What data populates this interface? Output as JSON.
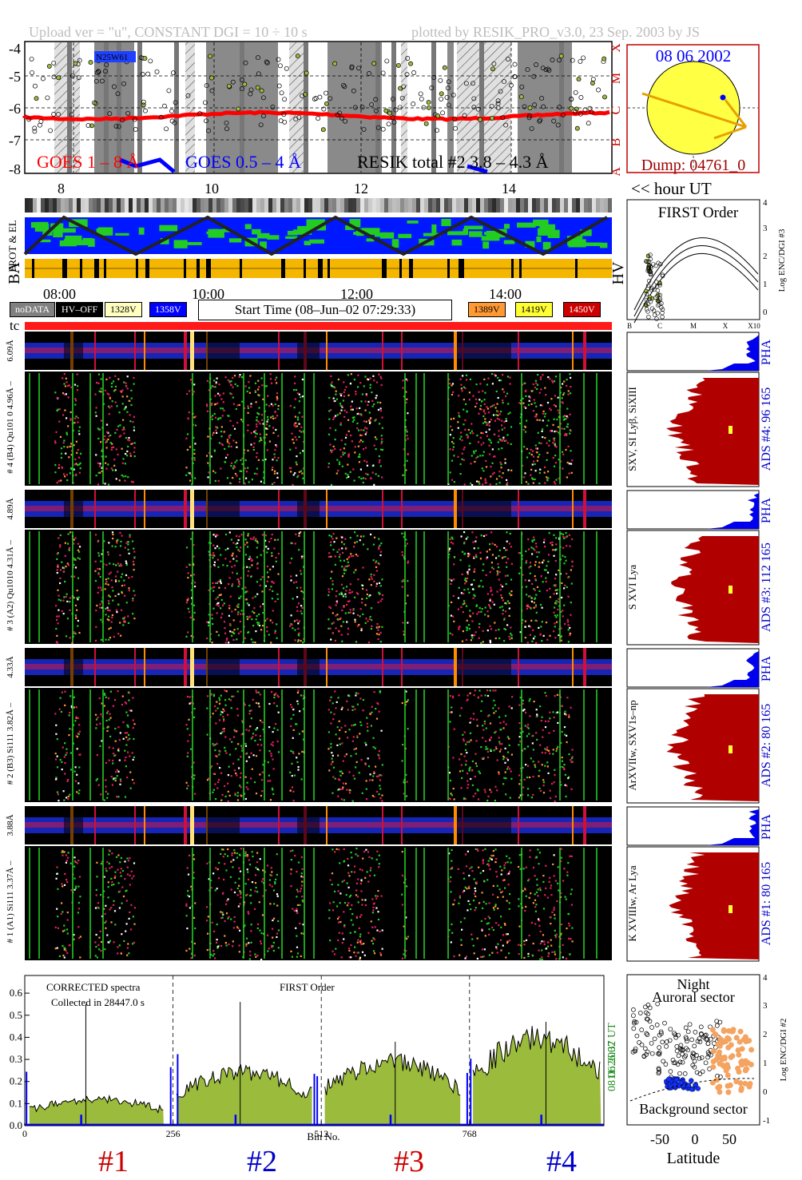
{
  "header": {
    "left": "Upload ver = \"u\", CONSTANT  DGI =  10 ÷  10 s",
    "right": "plotted by RESIK_PRO_v3.0, 23 Sep. 2003 by JS"
  },
  "goes_panel": {
    "y_ticks": [
      "-4",
      "-5",
      "-6",
      "-7",
      "-8"
    ],
    "class_letters": [
      "X",
      "M",
      "C",
      "B",
      "A"
    ],
    "legend_goes_long": "GOES 1 – 8 Å",
    "legend_goes_short": "GOES 0.5 – 4 Å",
    "legend_resik": "RESIK total #2  3.8 – 4.3 Å",
    "annotation": "N25W61",
    "colors": {
      "goes_long": "#ff0000",
      "goes_short": "#0000ff",
      "resik": "#000000",
      "flare": "#9bbb3c"
    }
  },
  "sun_panel": {
    "date": "08 06 2002",
    "dump": "Dump: 04761_0"
  },
  "time_axis": {
    "hour_ticks": [
      "8",
      "10",
      "12",
      "14"
    ],
    "hour_label": "<< hour UT",
    "clock_ticks": [
      "08:00",
      "10:00",
      "12:00",
      "14:00"
    ]
  },
  "status_rows": {
    "prot_label": "PROT & EL",
    "ba_label": "BA",
    "hv_label": "HV"
  },
  "legend": {
    "items": [
      {
        "label": "noDATA",
        "bg": "#808080",
        "fg": "#ffffff"
      },
      {
        "label": "HV–OFF",
        "bg": "#000000",
        "fg": "#ffffff"
      },
      {
        "label": "1328V",
        "bg": "#ffffc0",
        "fg": "#000000"
      },
      {
        "label": "1358V",
        "bg": "#0000ff",
        "fg": "#ffffff"
      },
      {
        "label": "1389V",
        "bg": "#ff9933",
        "fg": "#000000"
      },
      {
        "label": "1419V",
        "bg": "#ffff33",
        "fg": "#000000"
      },
      {
        "label": "1450V",
        "bg": "#cc0000",
        "fg": "#ffffff"
      }
    ],
    "start_time": "Start Time (08–Jun–02 07:29:33)",
    "tc": "tc"
  },
  "first_order_panel": {
    "title": "FIRST Order",
    "y_ticks": [
      "4",
      "3",
      "2",
      "1",
      "0"
    ],
    "y_label": "Log ENC/DGI #3",
    "x_ticks": [
      "B",
      "C",
      "M",
      "X",
      "X10"
    ]
  },
  "channels": [
    {
      "pha_label": "6.09Å",
      "spec_label": "# 4 (B4) Qu101 0  4.96Å –",
      "lines": "SXV, SI Lyβ, SiXIII",
      "ads": "ADS #4:   96 165",
      "pha": "PHA"
    },
    {
      "pha_label": "4.89Å",
      "spec_label": "# 3 (A2) Qu1010  4.31Å –",
      "lines": "S XVI Lya",
      "ads": "ADS #3:   112 165",
      "pha": "PHA"
    },
    {
      "pha_label": "4.33Å",
      "spec_label": "# 2 (B3) Si111  3.82Å –",
      "lines": "ArXVIIw, SXV1s–np",
      "ads": "ADS #2:   80 165",
      "pha": "PHA"
    },
    {
      "pha_label": "3.88Å",
      "spec_label": "# 1 (A1) Si111  3.37Å –",
      "lines": "K XVIIIw, Ar Lya",
      "ads": "ADS #1:   80 165",
      "pha": "PHA"
    }
  ],
  "chart_data": {
    "type": "area",
    "title": "CORRECTED spectra",
    "subtitle": "Collected in 28447.0 s",
    "annotation": "FIRST Order",
    "xlabel": "Bin No.",
    "x_ticks": [
      0,
      256,
      512,
      768
    ],
    "xlim": [
      0,
      1000
    ],
    "y_ticks": [
      0.0,
      0.1,
      0.2,
      0.3,
      0.4,
      0.5,
      0.6
    ],
    "ylim": [
      0,
      0.68
    ],
    "series": [
      {
        "values": [
          0.1,
          0.2,
          0.24,
          0.33
        ],
        "color": "#9bbb3c"
      },
      {
        "values": [
          0.005,
          0.005,
          0.005,
          0.005
        ],
        "color": "#0000ff"
      }
    ],
    "peaks": [
      0.55,
      0.56,
      0.38,
      0.47
    ],
    "channel_numbers": [
      "#1",
      "#2",
      "#3",
      "#4"
    ],
    "timestamp": "11:26:37 UT",
    "date": "08 06 2002"
  },
  "latitude_panel": {
    "title_line1": "Night",
    "title_line2": "Auroral sector",
    "bottom_label": "Background sector",
    "xlabel": "Latitude",
    "x_ticks": [
      "-50",
      "0",
      "50"
    ],
    "y_ticks": [
      "4",
      "3",
      "2",
      "1",
      "0",
      "-1"
    ],
    "y_label": "Log ENC/DGI #2"
  }
}
